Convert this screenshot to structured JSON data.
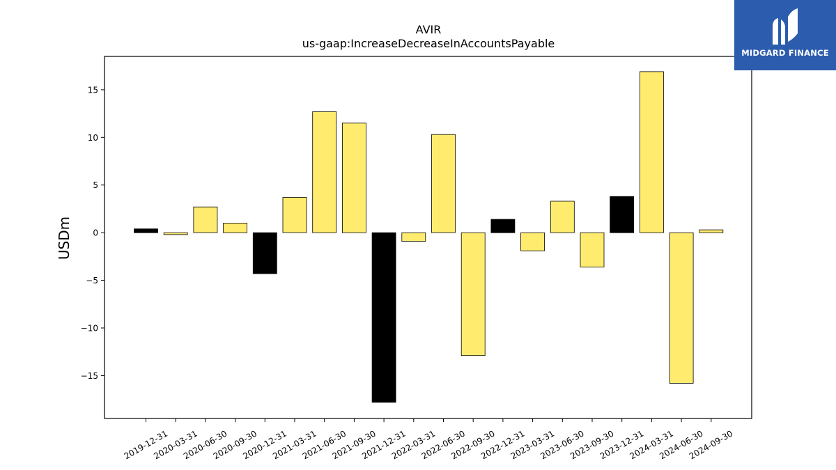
{
  "chart_data": {
    "type": "bar",
    "title": "AVIR",
    "subtitle": "us-gaap:IncreaseDecreaseInAccountsPayable",
    "xlabel": "",
    "ylabel": "USDm",
    "ylim": [
      -19.5,
      18.5
    ],
    "yticks": [
      15,
      10,
      5,
      0,
      -5,
      -10,
      -15
    ],
    "ytick_labels": [
      "15",
      "10",
      "5",
      "0",
      "−5",
      "−10",
      "−15"
    ],
    "grid": false,
    "categories": [
      "2019-12-31",
      "2020-03-31",
      "2020-06-30",
      "2020-09-30",
      "2020-12-31",
      "2021-03-31",
      "2021-06-30",
      "2021-09-30",
      "2021-12-31",
      "2022-03-31",
      "2022-06-30",
      "2022-09-30",
      "2022-12-31",
      "2023-03-31",
      "2023-06-30",
      "2023-09-30",
      "2023-12-31",
      "2024-03-31",
      "2024-06-30",
      "2024-09-30"
    ],
    "values": [
      0.4,
      -0.2,
      2.7,
      1.0,
      -4.3,
      3.7,
      12.7,
      11.5,
      -17.8,
      -0.9,
      10.3,
      -12.9,
      1.4,
      -1.9,
      3.3,
      -3.6,
      3.8,
      16.9,
      -15.8,
      0.3
    ],
    "bar_colors": [
      "#000000",
      "#ffec6e",
      "#ffec6e",
      "#ffec6e",
      "#000000",
      "#ffec6e",
      "#ffec6e",
      "#ffec6e",
      "#000000",
      "#ffec6e",
      "#ffec6e",
      "#ffec6e",
      "#000000",
      "#ffec6e",
      "#ffec6e",
      "#ffec6e",
      "#000000",
      "#ffec6e",
      "#ffec6e",
      "#ffec6e"
    ]
  },
  "logo": {
    "text": "MIDGARD FINANCE",
    "background": "#2b5cad"
  }
}
